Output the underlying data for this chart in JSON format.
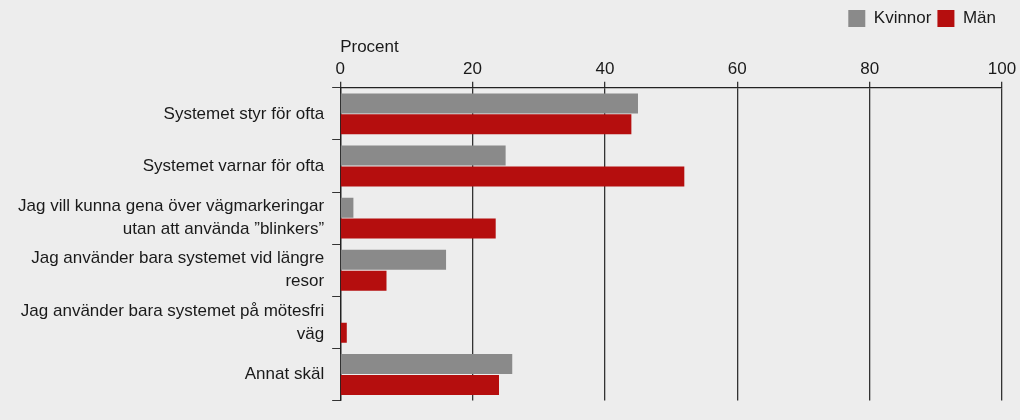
{
  "chart_data": {
    "type": "bar",
    "orientation": "horizontal",
    "xlabel": "Procent",
    "categories": [
      "Systemet styr för ofta",
      "Systemet varnar för ofta",
      "Jag vill kunna gena över vägmarkeringar utan att använda ”blinkers”",
      "Jag använder bara systemet vid längre resor",
      "Jag använder bara systemet på mötesfri väg",
      "Annat skäl"
    ],
    "series": [
      {
        "name": "Kvinnor",
        "color": "#8a8a8a",
        "values": [
          45,
          25,
          2,
          16,
          0,
          26
        ]
      },
      {
        "name": "Män",
        "color": "#b50e0e",
        "values": [
          44,
          52,
          23.5,
          7,
          1,
          24
        ]
      }
    ],
    "xlim": [
      0,
      100
    ],
    "xticks": [
      0,
      20,
      40,
      60,
      80,
      100
    ],
    "grid": "x",
    "legend": "top right"
  }
}
